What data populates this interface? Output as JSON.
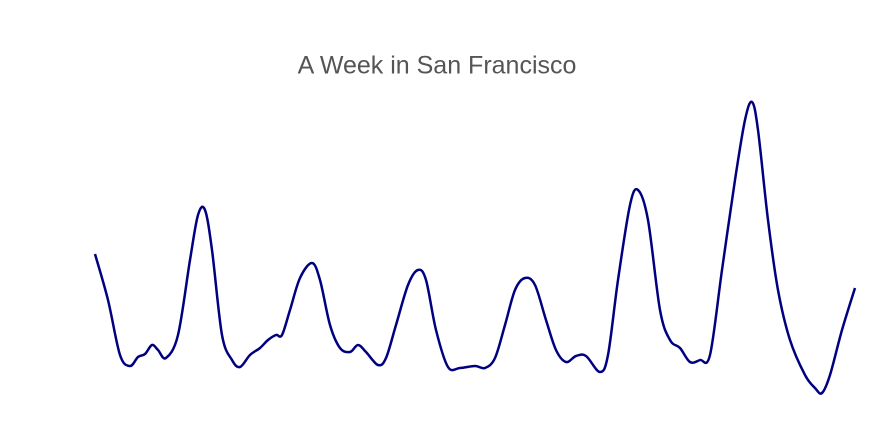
{
  "chart_data": {
    "type": "line",
    "title": "A Week in San Francisco",
    "x": [
      0,
      13,
      25,
      35,
      43,
      50,
      57,
      63,
      71,
      83,
      95,
      103,
      110,
      117,
      127,
      137,
      145,
      155,
      165,
      173,
      181,
      187,
      195,
      205,
      217,
      225,
      235,
      245,
      255,
      263,
      271,
      283,
      291,
      301,
      313,
      323,
      331,
      341,
      353,
      365,
      380,
      390,
      400,
      410,
      420,
      430,
      440,
      451,
      461,
      471,
      481,
      491,
      505,
      513,
      523,
      535,
      543,
      553,
      565,
      575,
      585,
      595,
      605,
      615,
      627,
      640,
      650,
      657,
      663,
      673,
      683,
      695,
      710,
      720,
      727,
      735,
      747,
      760
    ],
    "series": [
      {
        "name": null,
        "color": "#000080",
        "values": [
          146,
          100,
          45,
          34,
          43,
          46,
          55,
          50,
          42,
          65,
          140,
          185,
          190,
          150,
          65,
          40,
          33,
          45,
          52,
          60,
          65,
          65,
          90,
          122,
          137,
          120,
          75,
          52,
          48,
          55,
          48,
          35,
          42,
          75,
          115,
          130,
          120,
          70,
          33,
          32,
          34,
          32,
          42,
          75,
          110,
          122,
          115,
          80,
          50,
          38,
          44,
          44,
          28,
          45,
          120,
          195,
          210,
          180,
          90,
          60,
          52,
          38,
          40,
          45,
          130,
          220,
          280,
          298,
          270,
          180,
          110,
          60,
          25,
          12,
          7,
          25,
          70,
          112
        ]
      }
    ],
    "xlim": [
      0,
      760
    ],
    "ylim": [
      0,
      300
    ]
  }
}
